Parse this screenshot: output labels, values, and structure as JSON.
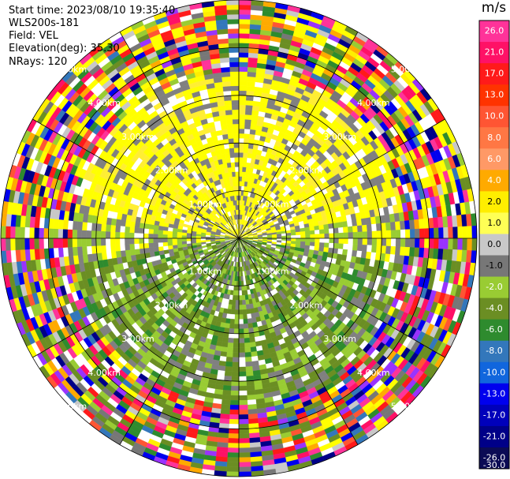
{
  "header": {
    "start_time": "Start time: 2023/08/10 19:35:40",
    "instrument": "WLS200s-181",
    "field": "Field: VEL",
    "elevation": "Elevation(deg): 35.30",
    "nrays": "NRays: 120"
  },
  "colorbar": {
    "unit": "m/s",
    "ticks": [
      "26.0",
      "21.0",
      "17.0",
      "13.0",
      "10.0",
      "8.0",
      "6.0",
      "4.0",
      "2.0",
      "1.0",
      "0.0",
      "-1.0",
      "-2.0",
      "-4.0",
      "-6.0",
      "-8.0",
      "-10.0",
      "-13.0",
      "-17.0",
      "-21.0",
      "-26.0",
      "-30.0"
    ],
    "bands": [
      "#ff3399",
      "#ff1166",
      "#ff1a1a",
      "#ff3300",
      "#ff5533",
      "#ff7744",
      "#ff9966",
      "#ffaa00",
      "#ffee00",
      "#ffff55",
      "#c8c8c8",
      "#777777",
      "#99cc33",
      "#6b8e23",
      "#2e8b2e",
      "#3377bb",
      "#1166dd",
      "#0000ee",
      "#0000bb",
      "#000088",
      "#0b0b55"
    ]
  },
  "chart_data": {
    "type": "heatmap",
    "projection": "polar PPI",
    "field": "VEL",
    "nrays": 120,
    "range_rings_km": [
      1,
      2,
      3,
      4,
      5
    ],
    "range_ring_labels": [
      "1.00km",
      "2.00km",
      "3.00km",
      "4.00km",
      "5.00km"
    ],
    "max_range_km": 5.0,
    "spokes_deg": [
      0,
      30,
      60,
      90,
      120,
      150,
      180,
      210,
      240,
      270,
      300,
      330
    ],
    "value_range": [
      -30,
      30
    ],
    "pattern_summary": "yellow positive velocities (0 to 3 m/s) in northern inner region, olive/green negative velocities (-1 to -6 m/s) in southern inner region, noisy random colors beyond about 3.5 km"
  }
}
